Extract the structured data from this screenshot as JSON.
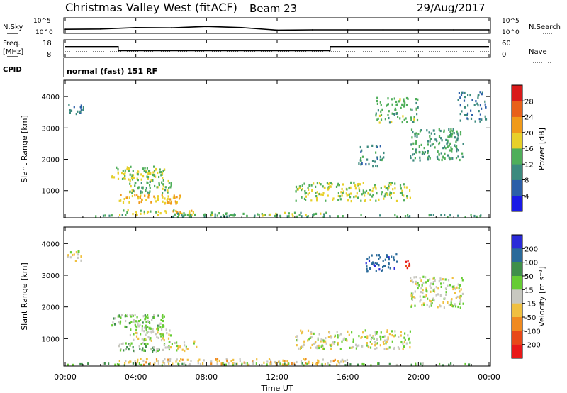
{
  "header": {
    "station": "Christmas Valley West (fitACF)",
    "beam": "Beam 23",
    "date": "29/Aug/2017"
  },
  "noise_panel": {
    "left_label": "N.Sky",
    "right_label": "N.Search",
    "left_ticks": [
      "10^5",
      "10^0"
    ],
    "right_ticks": [
      "10^5",
      "10^0"
    ]
  },
  "freq_panel": {
    "left_label_1": "Freq.",
    "left_label_2": "[MHz]",
    "right_label": "Nave",
    "left_ticks": [
      "18",
      "8"
    ],
    "right_ticks": [
      "60",
      "0"
    ]
  },
  "cpid_panel": {
    "label": "CPID",
    "text": "normal (fast) 151 RF"
  },
  "power_panel": {
    "ylabel": "Slant Range [km]",
    "yticks": [
      "1000",
      "2000",
      "3000",
      "4000"
    ],
    "colorbar_label": "Power [dB]",
    "colorbar_ticks": [
      "4",
      "8",
      "12",
      "16",
      "20",
      "24",
      "28"
    ],
    "colorbar_colors": [
      "#1a1ae6",
      "#2b5fa8",
      "#3c8a7e",
      "#4fae5a",
      "#e8d02a",
      "#f09a1a",
      "#e8601a",
      "#d91a1a"
    ]
  },
  "velocity_panel": {
    "ylabel": "Slant Range [km]",
    "yticks": [
      "1000",
      "2000",
      "3000",
      "4000"
    ],
    "colorbar_label": "Velocity [m s⁻¹]",
    "colorbar_ticks": [
      "200",
      "100",
      "50",
      "15",
      "-15",
      "-50",
      "-100",
      "-200"
    ],
    "colorbar_colors": [
      "#2a2ad8",
      "#2a6a9a",
      "#3f8f4a",
      "#66cc33",
      "#c8c8c0",
      "#f0c040",
      "#f08a20",
      "#e84818",
      "#e81818"
    ]
  },
  "time_axis": {
    "xlabel": "Time UT",
    "ticks": [
      "00:00",
      "04:00",
      "08:00",
      "12:00",
      "16:00",
      "20:00",
      "00:00"
    ]
  },
  "chart_data": [
    {
      "type": "line",
      "title": "N.Sky",
      "x_unit": "hours UT",
      "x": [
        0,
        2,
        4,
        6,
        8,
        10,
        12,
        14,
        16,
        18,
        20,
        22,
        24
      ],
      "y": [
        1.2,
        1.3,
        1.8,
        1.7,
        2.2,
        1.8,
        0.9,
        1.0,
        1.0,
        1.0,
        1.0,
        1.0,
        1.0
      ],
      "ylim": [
        0,
        5
      ]
    },
    {
      "type": "line",
      "title": "Freq. [MHz]",
      "x": [
        0,
        3.0,
        3.0,
        15.0,
        15.0,
        24
      ],
      "y": [
        14.5,
        14.5,
        11.8,
        11.8,
        14.5,
        14.5
      ],
      "ylim": [
        8,
        18
      ]
    },
    {
      "type": "heatmap",
      "title": "Power [dB]",
      "xlabel": "Time UT",
      "ylabel": "Slant Range [km]",
      "xlim": [
        0,
        24
      ],
      "ylim": [
        180,
        4500
      ],
      "clim": [
        0,
        32
      ],
      "regions": [
        {
          "t": [
            0.0,
            1.0
          ],
          "r": [
            3450,
            3800
          ],
          "value": 8,
          "density": 0.6
        },
        {
          "t": [
            2.6,
            5.6
          ],
          "r": [
            1350,
            1800
          ],
          "value": 16,
          "density": 0.8
        },
        {
          "t": [
            3.6,
            6.0
          ],
          "r": [
            950,
            1350
          ],
          "value": 14,
          "density": 0.7
        },
        {
          "t": [
            3.0,
            6.5
          ],
          "r": [
            620,
            900
          ],
          "value": 20,
          "density": 0.8
        },
        {
          "t": [
            3.0,
            7.5
          ],
          "r": [
            250,
            420
          ],
          "value": 18,
          "density": 0.6
        },
        {
          "t": [
            6.0,
            15.0
          ],
          "r": [
            200,
            330
          ],
          "value": 14,
          "density": 0.7
        },
        {
          "t": [
            13.0,
            19.5
          ],
          "r": [
            700,
            1300
          ],
          "value": 16,
          "density": 0.6
        },
        {
          "t": [
            16.5,
            18.0
          ],
          "r": [
            1800,
            2500
          ],
          "value": 10,
          "density": 0.4
        },
        {
          "t": [
            17.5,
            20.0
          ],
          "r": [
            3200,
            4000
          ],
          "value": 14,
          "density": 0.5
        },
        {
          "t": [
            19.5,
            22.5
          ],
          "r": [
            2000,
            3000
          ],
          "value": 12,
          "density": 0.6
        },
        {
          "t": [
            22.2,
            23.8
          ],
          "r": [
            3200,
            4200
          ],
          "value": 8,
          "density": 0.4
        },
        {
          "t": [
            0.0,
            24.0
          ],
          "r": [
            190,
            260
          ],
          "value": 12,
          "density": 0.4
        }
      ]
    },
    {
      "type": "heatmap",
      "title": "Velocity [m s⁻¹]",
      "xlabel": "Time UT",
      "ylabel": "Slant Range [km]",
      "xlim": [
        0,
        24
      ],
      "ylim": [
        180,
        4500
      ],
      "clim": [
        -200,
        200
      ],
      "regions": [
        {
          "t": [
            0.0,
            1.0
          ],
          "r": [
            3450,
            3800
          ],
          "value": 0,
          "density": 0.5
        },
        {
          "t": [
            2.6,
            5.6
          ],
          "r": [
            1350,
            1800
          ],
          "value": 30,
          "density": 0.8
        },
        {
          "t": [
            3.6,
            6.0
          ],
          "r": [
            950,
            1350
          ],
          "value": 0,
          "density": 0.7
        },
        {
          "t": [
            3.0,
            5.5
          ],
          "r": [
            620,
            900
          ],
          "value": 30,
          "density": 0.8
        },
        {
          "t": [
            5.5,
            7.5
          ],
          "r": [
            650,
            950
          ],
          "value": 0,
          "density": 0.6
        },
        {
          "t": [
            3.0,
            16.0
          ],
          "r": [
            200,
            400
          ],
          "value": -30,
          "density": 0.7
        },
        {
          "t": [
            13.0,
            19.5
          ],
          "r": [
            700,
            1300
          ],
          "value": 0,
          "density": 0.6
        },
        {
          "t": [
            17.0,
            18.8
          ],
          "r": [
            3150,
            3700
          ],
          "value": 180,
          "density": 0.6
        },
        {
          "t": [
            19.2,
            19.5
          ],
          "r": [
            3250,
            3500
          ],
          "value": -200,
          "density": 0.9
        },
        {
          "t": [
            19.5,
            22.5
          ],
          "r": [
            2000,
            3000
          ],
          "value": 0,
          "density": 0.6
        },
        {
          "t": [
            0.0,
            24.0
          ],
          "r": [
            190,
            260
          ],
          "value": 40,
          "density": 0.5
        }
      ]
    }
  ]
}
